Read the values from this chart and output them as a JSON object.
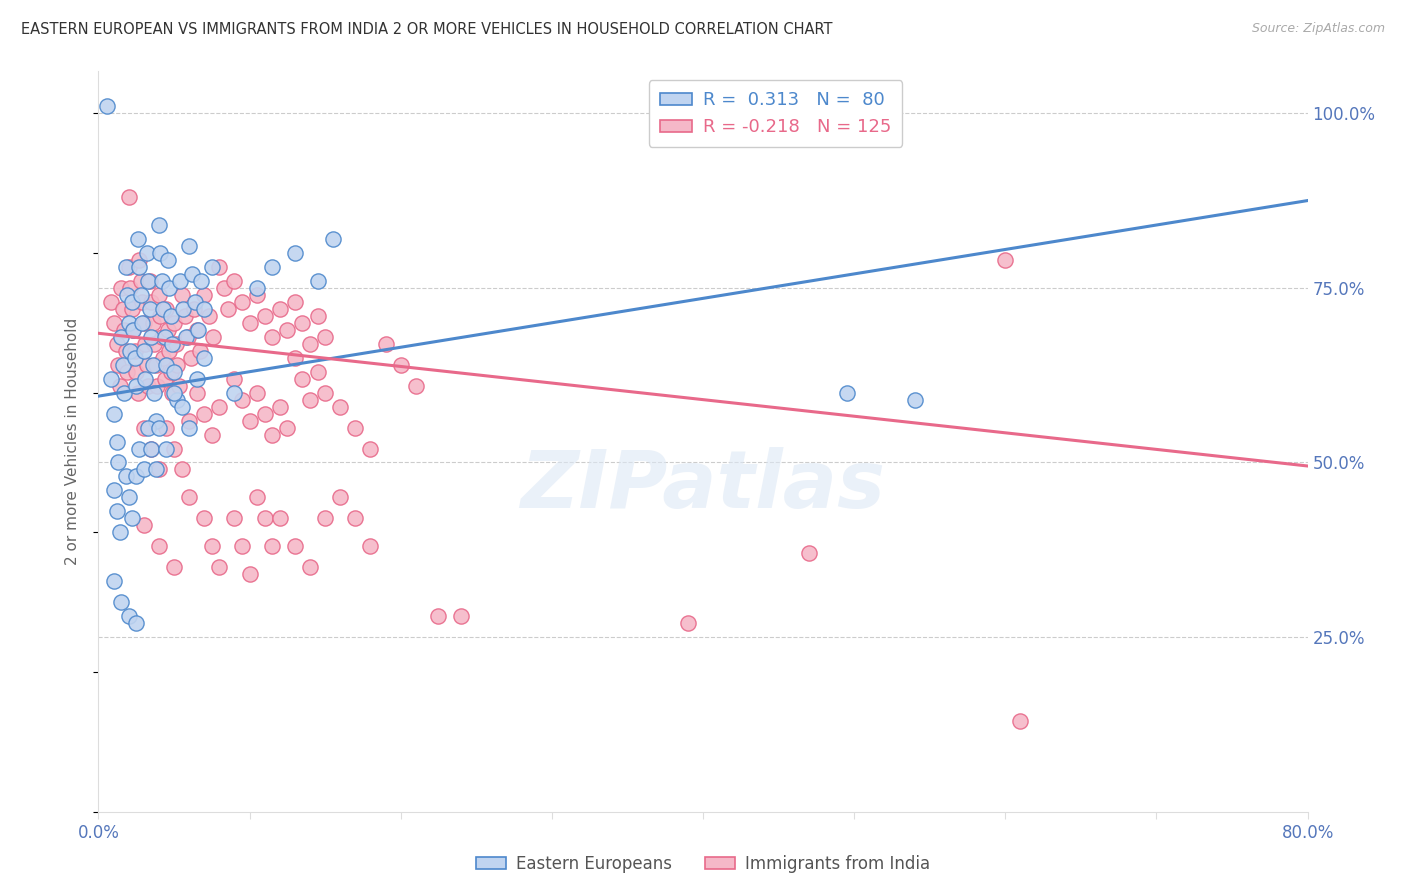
{
  "title": "EASTERN EUROPEAN VS IMMIGRANTS FROM INDIA 2 OR MORE VEHICLES IN HOUSEHOLD CORRELATION CHART",
  "source": "Source: ZipAtlas.com",
  "ylabel": "2 or more Vehicles in Household",
  "ytick_labels": [
    "100.0%",
    "75.0%",
    "50.0%",
    "25.0%"
  ],
  "ytick_values": [
    1.0,
    0.75,
    0.5,
    0.25
  ],
  "xmin": 0.0,
  "xmax": 0.8,
  "ymin": 0.0,
  "ymax": 1.06,
  "blue_line_x": [
    0.0,
    0.8
  ],
  "blue_line_y": [
    0.595,
    0.875
  ],
  "pink_line_x": [
    0.0,
    0.8
  ],
  "pink_line_y": [
    0.685,
    0.495
  ],
  "blue_color": "#4d88cc",
  "pink_color": "#e8698a",
  "blue_face_color": "#c0d4f0",
  "pink_face_color": "#f5b8c8",
  "watermark": "ZIPatlas",
  "grid_color": "#cccccc",
  "title_color": "#333333",
  "tick_color": "#5577bb",
  "blue_points": [
    [
      0.008,
      0.62
    ],
    [
      0.01,
      0.57
    ],
    [
      0.012,
      0.53
    ],
    [
      0.013,
      0.5
    ],
    [
      0.015,
      0.68
    ],
    [
      0.016,
      0.64
    ],
    [
      0.017,
      0.6
    ],
    [
      0.018,
      0.78
    ],
    [
      0.019,
      0.74
    ],
    [
      0.02,
      0.7
    ],
    [
      0.021,
      0.66
    ],
    [
      0.022,
      0.73
    ],
    [
      0.023,
      0.69
    ],
    [
      0.024,
      0.65
    ],
    [
      0.025,
      0.61
    ],
    [
      0.026,
      0.82
    ],
    [
      0.027,
      0.78
    ],
    [
      0.028,
      0.74
    ],
    [
      0.029,
      0.7
    ],
    [
      0.03,
      0.66
    ],
    [
      0.031,
      0.62
    ],
    [
      0.032,
      0.8
    ],
    [
      0.033,
      0.76
    ],
    [
      0.034,
      0.72
    ],
    [
      0.035,
      0.68
    ],
    [
      0.036,
      0.64
    ],
    [
      0.037,
      0.6
    ],
    [
      0.038,
      0.56
    ],
    [
      0.04,
      0.84
    ],
    [
      0.041,
      0.8
    ],
    [
      0.042,
      0.76
    ],
    [
      0.043,
      0.72
    ],
    [
      0.044,
      0.68
    ],
    [
      0.045,
      0.64
    ],
    [
      0.046,
      0.79
    ],
    [
      0.047,
      0.75
    ],
    [
      0.048,
      0.71
    ],
    [
      0.049,
      0.67
    ],
    [
      0.05,
      0.63
    ],
    [
      0.052,
      0.59
    ],
    [
      0.054,
      0.76
    ],
    [
      0.056,
      0.72
    ],
    [
      0.058,
      0.68
    ],
    [
      0.06,
      0.81
    ],
    [
      0.062,
      0.77
    ],
    [
      0.064,
      0.73
    ],
    [
      0.066,
      0.69
    ],
    [
      0.068,
      0.76
    ],
    [
      0.07,
      0.72
    ],
    [
      0.075,
      0.78
    ],
    [
      0.01,
      0.46
    ],
    [
      0.012,
      0.43
    ],
    [
      0.014,
      0.4
    ],
    [
      0.018,
      0.48
    ],
    [
      0.02,
      0.45
    ],
    [
      0.022,
      0.42
    ],
    [
      0.025,
      0.48
    ],
    [
      0.027,
      0.52
    ],
    [
      0.03,
      0.49
    ],
    [
      0.033,
      0.55
    ],
    [
      0.035,
      0.52
    ],
    [
      0.038,
      0.49
    ],
    [
      0.04,
      0.55
    ],
    [
      0.045,
      0.52
    ],
    [
      0.05,
      0.6
    ],
    [
      0.055,
      0.58
    ],
    [
      0.06,
      0.55
    ],
    [
      0.065,
      0.62
    ],
    [
      0.07,
      0.65
    ],
    [
      0.01,
      0.33
    ],
    [
      0.015,
      0.3
    ],
    [
      0.02,
      0.28
    ],
    [
      0.025,
      0.27
    ],
    [
      0.09,
      0.6
    ],
    [
      0.105,
      0.75
    ],
    [
      0.115,
      0.78
    ],
    [
      0.13,
      0.8
    ],
    [
      0.145,
      0.76
    ],
    [
      0.155,
      0.82
    ],
    [
      0.006,
      1.01
    ],
    [
      0.495,
      0.6
    ],
    [
      0.54,
      0.59
    ]
  ],
  "pink_points": [
    [
      0.008,
      0.73
    ],
    [
      0.01,
      0.7
    ],
    [
      0.012,
      0.67
    ],
    [
      0.013,
      0.64
    ],
    [
      0.014,
      0.61
    ],
    [
      0.015,
      0.75
    ],
    [
      0.016,
      0.72
    ],
    [
      0.017,
      0.69
    ],
    [
      0.018,
      0.66
    ],
    [
      0.019,
      0.63
    ],
    [
      0.02,
      0.78
    ],
    [
      0.021,
      0.75
    ],
    [
      0.022,
      0.72
    ],
    [
      0.023,
      0.69
    ],
    [
      0.024,
      0.66
    ],
    [
      0.025,
      0.63
    ],
    [
      0.026,
      0.6
    ],
    [
      0.027,
      0.79
    ],
    [
      0.028,
      0.76
    ],
    [
      0.029,
      0.73
    ],
    [
      0.03,
      0.7
    ],
    [
      0.031,
      0.67
    ],
    [
      0.032,
      0.64
    ],
    [
      0.033,
      0.61
    ],
    [
      0.034,
      0.76
    ],
    [
      0.035,
      0.73
    ],
    [
      0.036,
      0.7
    ],
    [
      0.037,
      0.67
    ],
    [
      0.038,
      0.64
    ],
    [
      0.039,
      0.61
    ],
    [
      0.04,
      0.74
    ],
    [
      0.041,
      0.71
    ],
    [
      0.042,
      0.68
    ],
    [
      0.043,
      0.65
    ],
    [
      0.044,
      0.62
    ],
    [
      0.045,
      0.72
    ],
    [
      0.046,
      0.69
    ],
    [
      0.047,
      0.66
    ],
    [
      0.048,
      0.63
    ],
    [
      0.049,
      0.6
    ],
    [
      0.05,
      0.7
    ],
    [
      0.051,
      0.67
    ],
    [
      0.052,
      0.64
    ],
    [
      0.053,
      0.61
    ],
    [
      0.055,
      0.74
    ],
    [
      0.057,
      0.71
    ],
    [
      0.059,
      0.68
    ],
    [
      0.061,
      0.65
    ],
    [
      0.063,
      0.72
    ],
    [
      0.065,
      0.69
    ],
    [
      0.067,
      0.66
    ],
    [
      0.07,
      0.74
    ],
    [
      0.073,
      0.71
    ],
    [
      0.076,
      0.68
    ],
    [
      0.08,
      0.78
    ],
    [
      0.083,
      0.75
    ],
    [
      0.086,
      0.72
    ],
    [
      0.09,
      0.76
    ],
    [
      0.095,
      0.73
    ],
    [
      0.1,
      0.7
    ],
    [
      0.105,
      0.74
    ],
    [
      0.11,
      0.71
    ],
    [
      0.115,
      0.68
    ],
    [
      0.12,
      0.72
    ],
    [
      0.125,
      0.69
    ],
    [
      0.13,
      0.73
    ],
    [
      0.135,
      0.7
    ],
    [
      0.14,
      0.67
    ],
    [
      0.145,
      0.71
    ],
    [
      0.15,
      0.68
    ],
    [
      0.02,
      0.88
    ],
    [
      0.03,
      0.55
    ],
    [
      0.035,
      0.52
    ],
    [
      0.04,
      0.49
    ],
    [
      0.045,
      0.55
    ],
    [
      0.05,
      0.52
    ],
    [
      0.055,
      0.49
    ],
    [
      0.06,
      0.56
    ],
    [
      0.065,
      0.6
    ],
    [
      0.07,
      0.57
    ],
    [
      0.075,
      0.54
    ],
    [
      0.08,
      0.58
    ],
    [
      0.09,
      0.62
    ],
    [
      0.095,
      0.59
    ],
    [
      0.1,
      0.56
    ],
    [
      0.105,
      0.6
    ],
    [
      0.11,
      0.57
    ],
    [
      0.115,
      0.54
    ],
    [
      0.12,
      0.58
    ],
    [
      0.125,
      0.55
    ],
    [
      0.13,
      0.65
    ],
    [
      0.135,
      0.62
    ],
    [
      0.14,
      0.59
    ],
    [
      0.145,
      0.63
    ],
    [
      0.15,
      0.6
    ],
    [
      0.16,
      0.58
    ],
    [
      0.17,
      0.55
    ],
    [
      0.18,
      0.52
    ],
    [
      0.19,
      0.67
    ],
    [
      0.2,
      0.64
    ],
    [
      0.21,
      0.61
    ],
    [
      0.03,
      0.41
    ],
    [
      0.04,
      0.38
    ],
    [
      0.05,
      0.35
    ],
    [
      0.06,
      0.45
    ],
    [
      0.07,
      0.42
    ],
    [
      0.075,
      0.38
    ],
    [
      0.08,
      0.35
    ],
    [
      0.09,
      0.42
    ],
    [
      0.095,
      0.38
    ],
    [
      0.1,
      0.34
    ],
    [
      0.105,
      0.45
    ],
    [
      0.11,
      0.42
    ],
    [
      0.115,
      0.38
    ],
    [
      0.12,
      0.42
    ],
    [
      0.13,
      0.38
    ],
    [
      0.14,
      0.35
    ],
    [
      0.15,
      0.42
    ],
    [
      0.16,
      0.45
    ],
    [
      0.17,
      0.42
    ],
    [
      0.18,
      0.38
    ],
    [
      0.225,
      0.28
    ],
    [
      0.24,
      0.28
    ],
    [
      0.39,
      0.27
    ],
    [
      0.47,
      0.37
    ],
    [
      0.6,
      0.79
    ],
    [
      0.61,
      0.13
    ]
  ]
}
